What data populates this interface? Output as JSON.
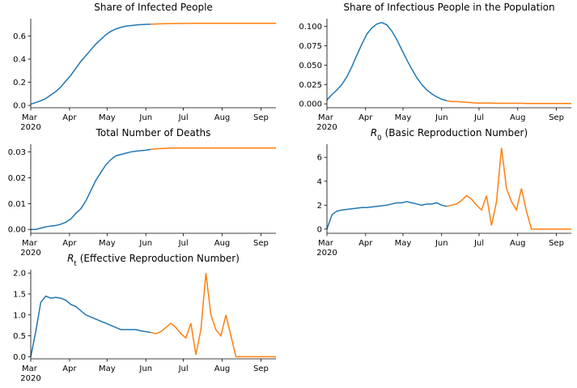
{
  "chart_data": [
    {
      "type": "line",
      "title": "Share of Infected People",
      "x": [
        0,
        4,
        8,
        12,
        16,
        20,
        24,
        28,
        32,
        36,
        40,
        44,
        48,
        52,
        56,
        60,
        64,
        68,
        72,
        76,
        80,
        84,
        88,
        92,
        96,
        100,
        104,
        108,
        112,
        116,
        120,
        124,
        128,
        132,
        136,
        140,
        144,
        148,
        152,
        156,
        160,
        164,
        168,
        172,
        176,
        180,
        184,
        188,
        192,
        196
      ],
      "xlim": [
        0,
        196
      ],
      "xticks": [
        {
          "value": 0,
          "label": "Mar 2020"
        },
        {
          "value": 31,
          "label": "Apr"
        },
        {
          "value": 61,
          "label": "May"
        },
        {
          "value": 92,
          "label": "Jun"
        },
        {
          "value": 122,
          "label": "Jul"
        },
        {
          "value": 153,
          "label": "Aug"
        },
        {
          "value": 184,
          "label": "Sep"
        }
      ],
      "ylim": [
        -0.02,
        0.75
      ],
      "yticks": [
        {
          "value": 0,
          "label": "0.0"
        },
        {
          "value": 0.2,
          "label": "0.2"
        },
        {
          "value": 0.4,
          "label": "0.4"
        },
        {
          "value": 0.6,
          "label": "0.6"
        }
      ],
      "series": [
        {
          "color": "#1f77b4",
          "values": [
            0.01,
            0.025,
            0.04,
            0.06,
            0.09,
            0.12,
            0.16,
            0.21,
            0.26,
            0.32,
            0.38,
            0.43,
            0.48,
            0.53,
            0.57,
            0.61,
            0.64,
            0.66,
            0.675,
            0.685,
            0.69,
            0.695,
            0.698,
            0.7,
            0.702,
            null,
            null,
            null,
            null,
            null,
            null,
            null,
            null,
            null,
            null,
            null,
            null,
            null,
            null,
            null,
            null,
            null,
            null,
            null,
            null,
            null,
            null,
            null,
            null,
            null
          ]
        },
        {
          "color": "#ff7f0e",
          "values": [
            null,
            null,
            null,
            null,
            null,
            null,
            null,
            null,
            null,
            null,
            null,
            null,
            null,
            null,
            null,
            null,
            null,
            null,
            null,
            null,
            null,
            null,
            null,
            null,
            0.702,
            0.704,
            0.705,
            0.706,
            0.707,
            0.708,
            0.708,
            0.709,
            0.709,
            0.71,
            0.71,
            0.71,
            0.71,
            0.71,
            0.71,
            0.71,
            0.71,
            0.71,
            0.71,
            0.71,
            0.71,
            0.71,
            0.71,
            0.71,
            0.71,
            0.71
          ]
        }
      ]
    },
    {
      "type": "line",
      "title": "Share of Infectious People in the Population",
      "x": [
        0,
        4,
        8,
        12,
        16,
        20,
        24,
        28,
        32,
        36,
        40,
        44,
        48,
        52,
        56,
        60,
        64,
        68,
        72,
        76,
        80,
        84,
        88,
        92,
        96,
        100,
        104,
        108,
        112,
        116,
        120,
        124,
        128,
        132,
        136,
        140,
        144,
        148,
        152,
        156,
        160,
        164,
        168,
        172,
        176,
        180,
        184,
        188,
        192,
        196
      ],
      "xlim": [
        0,
        196
      ],
      "xticks": [
        {
          "value": 0,
          "label": "Mar 2020"
        },
        {
          "value": 31,
          "label": "Apr"
        },
        {
          "value": 61,
          "label": "May"
        },
        {
          "value": 92,
          "label": "Jun"
        },
        {
          "value": 122,
          "label": "Jul"
        },
        {
          "value": 153,
          "label": "Aug"
        },
        {
          "value": 184,
          "label": "Sep"
        }
      ],
      "ylim": [
        -0.005,
        0.11
      ],
      "yticks": [
        {
          "value": 0,
          "label": "0.000"
        },
        {
          "value": 0.025,
          "label": "0.025"
        },
        {
          "value": 0.05,
          "label": "0.050"
        },
        {
          "value": 0.075,
          "label": "0.075"
        },
        {
          "value": 0.1,
          "label": "0.100"
        }
      ],
      "series": [
        {
          "color": "#1f77b4",
          "values": [
            0.005,
            0.012,
            0.018,
            0.025,
            0.035,
            0.048,
            0.063,
            0.077,
            0.09,
            0.098,
            0.103,
            0.105,
            0.102,
            0.094,
            0.083,
            0.07,
            0.057,
            0.045,
            0.034,
            0.025,
            0.018,
            0.013,
            0.009,
            0.006,
            0.004,
            null,
            null,
            null,
            null,
            null,
            null,
            null,
            null,
            null,
            null,
            null,
            null,
            null,
            null,
            null,
            null,
            null,
            null,
            null,
            null,
            null,
            null,
            null,
            null,
            null
          ]
        },
        {
          "color": "#ff7f0e",
          "values": [
            null,
            null,
            null,
            null,
            null,
            null,
            null,
            null,
            null,
            null,
            null,
            null,
            null,
            null,
            null,
            null,
            null,
            null,
            null,
            null,
            null,
            null,
            null,
            null,
            0.004,
            0.003,
            0.003,
            0.0025,
            0.002,
            0.0015,
            0.001,
            0.001,
            0.001,
            0.001,
            0.0008,
            0.0008,
            0.0008,
            0.0008,
            0.0008,
            0.0008,
            0.0005,
            0.0005,
            0.0005,
            0.0005,
            0.0005,
            0.0005,
            0.0005,
            0.0005,
            0.0005,
            0.0005
          ]
        }
      ]
    },
    {
      "type": "line",
      "title": "Total Number of Deaths",
      "x": [
        0,
        4,
        8,
        12,
        16,
        20,
        24,
        28,
        32,
        36,
        40,
        44,
        48,
        52,
        56,
        60,
        64,
        68,
        72,
        76,
        80,
        84,
        88,
        92,
        96,
        100,
        104,
        108,
        112,
        116,
        120,
        124,
        128,
        132,
        136,
        140,
        144,
        148,
        152,
        156,
        160,
        164,
        168,
        172,
        176,
        180,
        184,
        188,
        192,
        196
      ],
      "xlim": [
        0,
        196
      ],
      "xticks": [
        {
          "value": 0,
          "label": "Mar 2020"
        },
        {
          "value": 31,
          "label": "Apr"
        },
        {
          "value": 61,
          "label": "May"
        },
        {
          "value": 92,
          "label": "Jun"
        },
        {
          "value": 122,
          "label": "Jul"
        },
        {
          "value": 153,
          "label": "Aug"
        },
        {
          "value": 184,
          "label": "Sep"
        }
      ],
      "ylim": [
        -0.0015,
        0.033
      ],
      "yticks": [
        {
          "value": 0,
          "label": "0.00"
        },
        {
          "value": 0.01,
          "label": "0.01"
        },
        {
          "value": 0.02,
          "label": "0.02"
        },
        {
          "value": 0.03,
          "label": "0.03"
        }
      ],
      "series": [
        {
          "color": "#1f77b4",
          "values": [
            0,
            0,
            0.0005,
            0.001,
            0.0013,
            0.0015,
            0.002,
            0.0028,
            0.004,
            0.0062,
            0.008,
            0.011,
            0.015,
            0.019,
            0.022,
            0.025,
            0.027,
            0.0285,
            0.029,
            0.0295,
            0.03,
            0.0303,
            0.0305,
            0.0307,
            0.031,
            null,
            null,
            null,
            null,
            null,
            null,
            null,
            null,
            null,
            null,
            null,
            null,
            null,
            null,
            null,
            null,
            null,
            null,
            null,
            null,
            null,
            null,
            null,
            null,
            null
          ]
        },
        {
          "color": "#ff7f0e",
          "values": [
            null,
            null,
            null,
            null,
            null,
            null,
            null,
            null,
            null,
            null,
            null,
            null,
            null,
            null,
            null,
            null,
            null,
            null,
            null,
            null,
            null,
            null,
            null,
            null,
            0.031,
            0.0312,
            0.0313,
            0.0314,
            0.0315,
            0.0315,
            0.0315,
            0.0315,
            0.0315,
            0.0315,
            0.0315,
            0.0315,
            0.0315,
            0.0315,
            0.0315,
            0.0315,
            0.0315,
            0.0315,
            0.0315,
            0.0315,
            0.0315,
            0.0315,
            0.0315,
            0.0315,
            0.0315,
            0.0315
          ]
        }
      ]
    },
    {
      "type": "line",
      "title": {
        "symbol": "R",
        "subscript": "0",
        "text": "(Basic Reproduction Number)"
      },
      "x": [
        0,
        4,
        8,
        12,
        16,
        20,
        24,
        28,
        32,
        36,
        40,
        44,
        48,
        52,
        56,
        60,
        64,
        68,
        72,
        76,
        80,
        84,
        88,
        92,
        96,
        100,
        104,
        108,
        112,
        116,
        120,
        124,
        128,
        132,
        136,
        140,
        144,
        148,
        152,
        156,
        160,
        164,
        168,
        172,
        176,
        180,
        184,
        188,
        192,
        196
      ],
      "xlim": [
        0,
        196
      ],
      "xticks": [
        {
          "value": 0,
          "label": "Mar 2020"
        },
        {
          "value": 31,
          "label": "Apr"
        },
        {
          "value": 61,
          "label": "May"
        },
        {
          "value": 92,
          "label": "Jun"
        },
        {
          "value": 122,
          "label": "Jul"
        },
        {
          "value": 153,
          "label": "Aug"
        },
        {
          "value": 184,
          "label": "Sep"
        }
      ],
      "ylim": [
        -0.35,
        7.1
      ],
      "yticks": [
        0,
        2,
        4,
        6
      ],
      "series": [
        {
          "color": "#1f77b4",
          "values": [
            0,
            1.2,
            1.5,
            1.6,
            1.65,
            1.7,
            1.75,
            1.8,
            1.8,
            1.85,
            1.9,
            1.95,
            2.0,
            2.1,
            2.2,
            2.2,
            2.3,
            2.2,
            2.1,
            2.0,
            2.1,
            2.1,
            2.2,
            2.0,
            1.9,
            null,
            null,
            null,
            null,
            null,
            null,
            null,
            null,
            null,
            null,
            null,
            null,
            null,
            null,
            null,
            null,
            null,
            null,
            null,
            null,
            null,
            null,
            null,
            null,
            null
          ]
        },
        {
          "color": "#ff7f0e",
          "values": [
            null,
            null,
            null,
            null,
            null,
            null,
            null,
            null,
            null,
            null,
            null,
            null,
            null,
            null,
            null,
            null,
            null,
            null,
            null,
            null,
            null,
            null,
            null,
            null,
            1.9,
            2.0,
            2.1,
            2.4,
            2.8,
            2.5,
            2.0,
            1.6,
            2.8,
            0.3,
            2.3,
            6.8,
            3.4,
            2.3,
            1.6,
            3.4,
            1.5,
            0,
            0,
            0,
            0,
            0,
            0,
            0,
            0,
            0
          ]
        }
      ]
    },
    {
      "type": "line",
      "title": {
        "symbol": "R",
        "subscript": "t",
        "text": "(Effective Reproduction Number)"
      },
      "x": [
        0,
        4,
        8,
        12,
        16,
        20,
        24,
        28,
        32,
        36,
        40,
        44,
        48,
        52,
        56,
        60,
        64,
        68,
        72,
        76,
        80,
        84,
        88,
        92,
        96,
        100,
        104,
        108,
        112,
        116,
        120,
        124,
        128,
        132,
        136,
        140,
        144,
        148,
        152,
        156,
        160,
        164,
        168,
        172,
        176,
        180,
        184,
        188,
        192,
        196
      ],
      "xlim": [
        0,
        196
      ],
      "xticks": [
        {
          "value": 0,
          "label": "Mar 2020"
        },
        {
          "value": 31,
          "label": "Apr"
        },
        {
          "value": 61,
          "label": "May"
        },
        {
          "value": 92,
          "label": "Jun"
        },
        {
          "value": 122,
          "label": "Jul"
        },
        {
          "value": 153,
          "label": "Aug"
        },
        {
          "value": 184,
          "label": "Sep"
        }
      ],
      "ylim": [
        -0.05,
        2.08
      ],
      "yticks": [
        {
          "value": 0,
          "label": "0.0"
        },
        {
          "value": 0.5,
          "label": "0.5"
        },
        {
          "value": 1,
          "label": "1.0"
        },
        {
          "value": 1.5,
          "label": "1.5"
        },
        {
          "value": 2,
          "label": "2.0"
        }
      ],
      "series": [
        {
          "color": "#1f77b4",
          "values": [
            0,
            0.6,
            1.3,
            1.45,
            1.4,
            1.42,
            1.4,
            1.35,
            1.25,
            1.2,
            1.1,
            1.0,
            0.95,
            0.9,
            0.85,
            0.8,
            0.75,
            0.7,
            0.65,
            0.65,
            0.65,
            0.65,
            0.62,
            0.6,
            0.58,
            null,
            null,
            null,
            null,
            null,
            null,
            null,
            null,
            null,
            null,
            null,
            null,
            null,
            null,
            null,
            null,
            null,
            null,
            null,
            null,
            null,
            null,
            null,
            null,
            null
          ]
        },
        {
          "color": "#ff7f0e",
          "values": [
            null,
            null,
            null,
            null,
            null,
            null,
            null,
            null,
            null,
            null,
            null,
            null,
            null,
            null,
            null,
            null,
            null,
            null,
            null,
            null,
            null,
            null,
            null,
            null,
            0.58,
            0.55,
            0.6,
            0.7,
            0.8,
            0.7,
            0.55,
            0.45,
            0.8,
            0.05,
            0.65,
            2.0,
            1.0,
            0.65,
            0.5,
            1.0,
            0.5,
            0,
            0,
            0,
            0,
            0,
            0,
            0,
            0,
            0
          ]
        }
      ]
    }
  ]
}
